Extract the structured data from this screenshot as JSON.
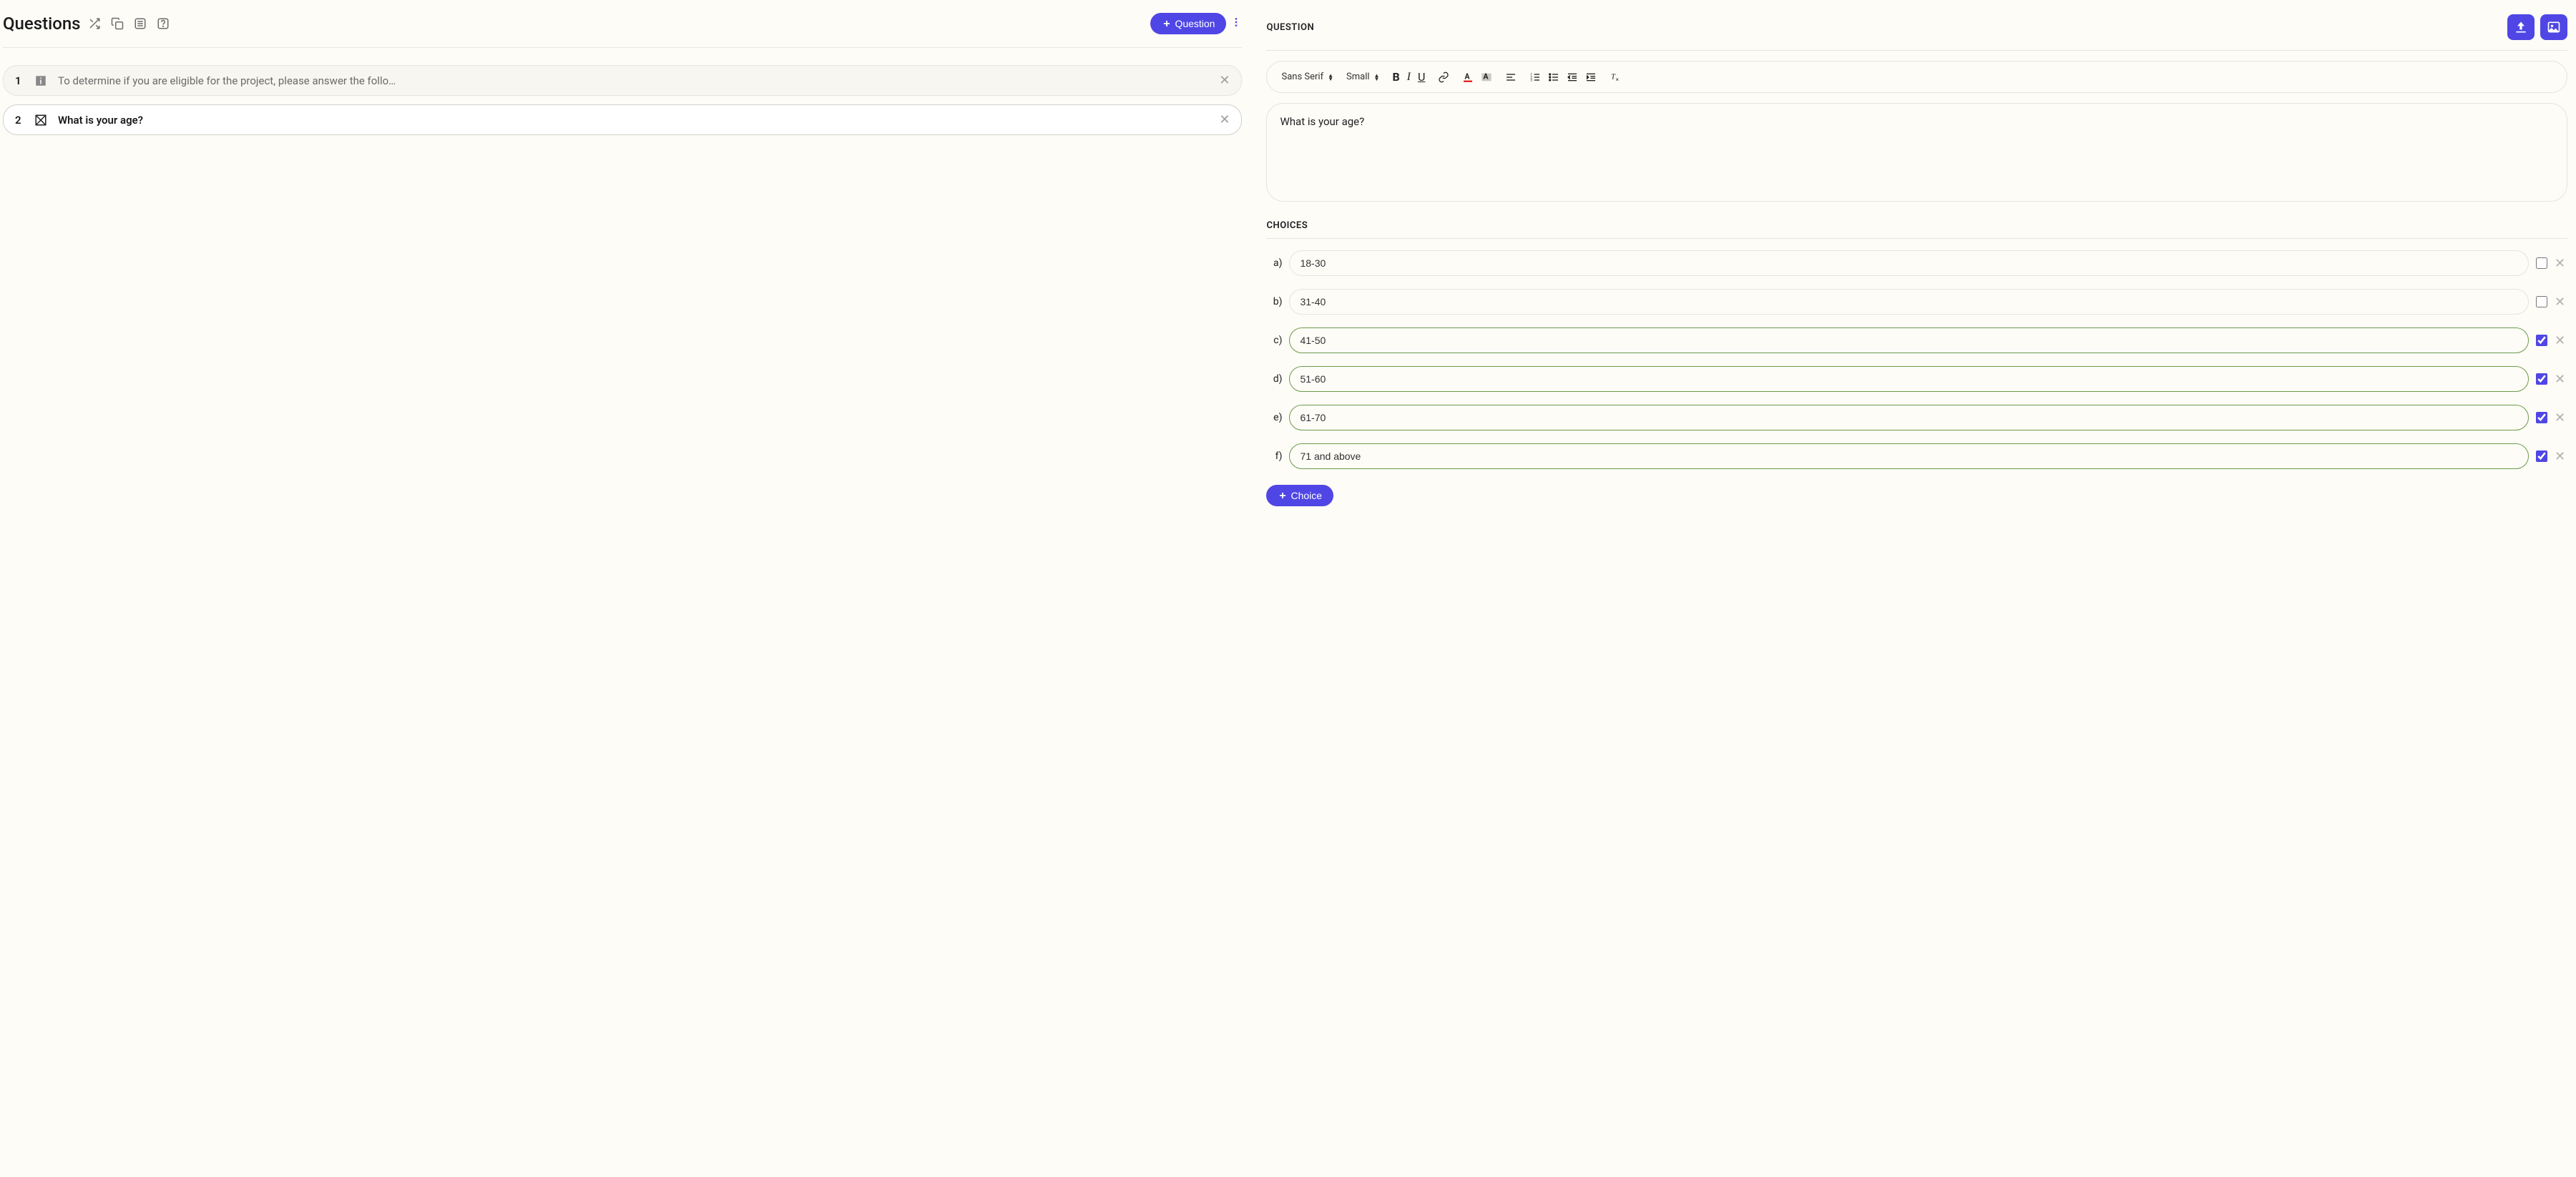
{
  "left": {
    "title": "Questions",
    "addButtonLabel": "Question",
    "questions": [
      {
        "num": "1",
        "text": "To determine if you are eligible for the project, please answer the follo…",
        "type": "info",
        "active": false
      },
      {
        "num": "2",
        "text": "What is your age?",
        "type": "choice",
        "active": true
      }
    ]
  },
  "right": {
    "sectionLabel": "QUESTION",
    "toolbar": {
      "font": "Sans Serif",
      "size": "Small"
    },
    "editorText": "What is your age?",
    "choicesLabel": "CHOICES",
    "choices": [
      {
        "label": "a)",
        "value": "18-30",
        "checked": false
      },
      {
        "label": "b)",
        "value": "31-40",
        "checked": false
      },
      {
        "label": "c)",
        "value": "41-50",
        "checked": true
      },
      {
        "label": "d)",
        "value": "51-60",
        "checked": true
      },
      {
        "label": "e)",
        "value": "61-70",
        "checked": true
      },
      {
        "label": "f)",
        "value": "71 and above",
        "checked": true
      }
    ],
    "addChoiceLabel": "Choice"
  },
  "colors": {
    "primary": "#4f46e5",
    "bg": "#fdfcf7",
    "border": "#e5e5e0",
    "checkedBorder": "#6b9b4a"
  }
}
